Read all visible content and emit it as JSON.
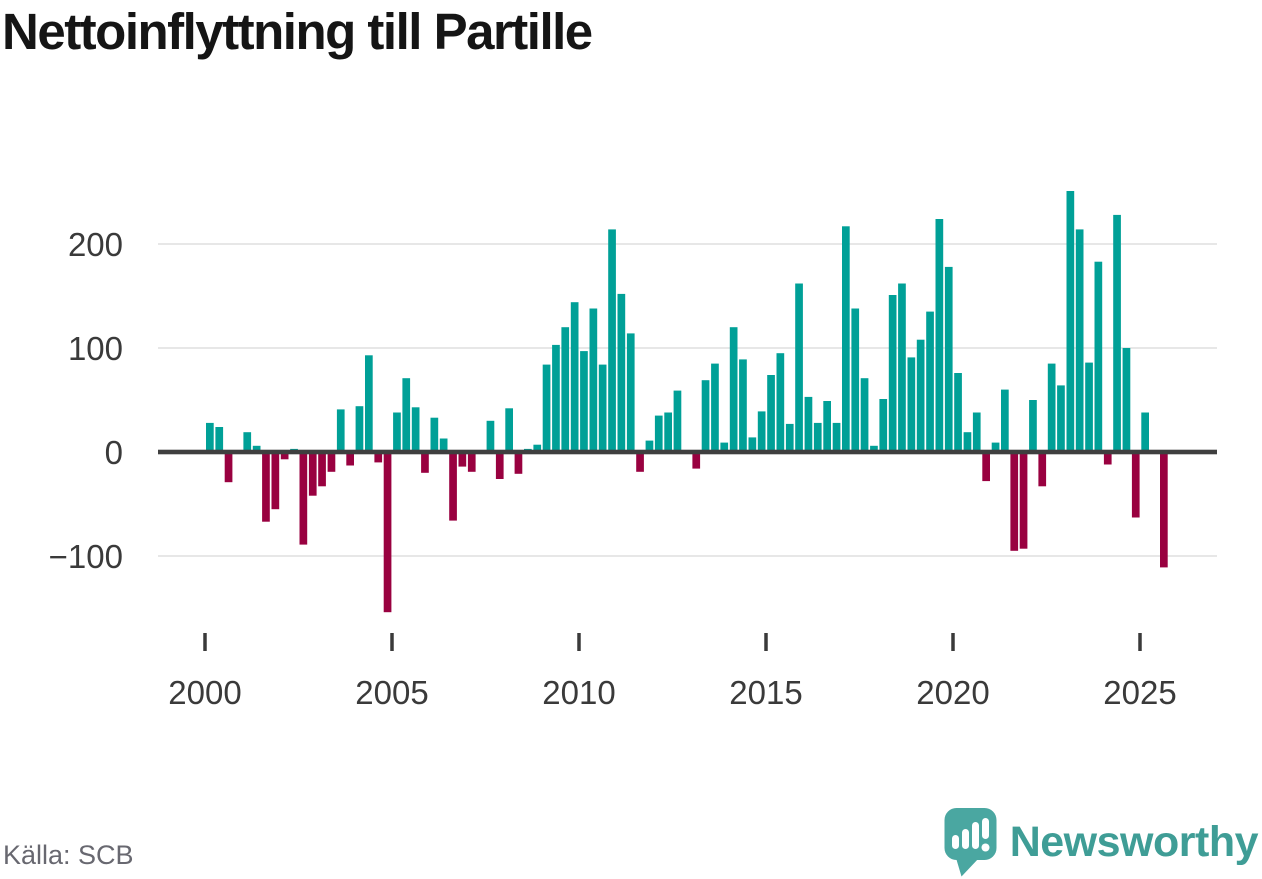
{
  "chart_data": {
    "type": "bar",
    "title": "Nettoinflyttning till Partille",
    "xlabel": "",
    "ylabel": "",
    "legend": "none",
    "grid": "horizontal",
    "ylim": [
      -160,
      260
    ],
    "y_ticks": [
      200,
      100,
      0,
      -100
    ],
    "x_tick_years": [
      2000,
      2005,
      2010,
      2015,
      2020,
      2025
    ],
    "categories": [
      "2000 Q1",
      "2000 Q2",
      "2000 Q3",
      "2000 Q4",
      "2001 Q1",
      "2001 Q2",
      "2001 Q3",
      "2001 Q4",
      "2002 Q1",
      "2002 Q2",
      "2002 Q3",
      "2002 Q4",
      "2003 Q1",
      "2003 Q2",
      "2003 Q3",
      "2003 Q4",
      "2004 Q1",
      "2004 Q2",
      "2004 Q3",
      "2004 Q4",
      "2005 Q1",
      "2005 Q2",
      "2005 Q3",
      "2005 Q4",
      "2006 Q1",
      "2006 Q2",
      "2006 Q3",
      "2006 Q4",
      "2007 Q1",
      "2007 Q2",
      "2007 Q3",
      "2007 Q4",
      "2008 Q1",
      "2008 Q2",
      "2008 Q3",
      "2008 Q4",
      "2009 Q1",
      "2009 Q2",
      "2009 Q3",
      "2009 Q4",
      "2010 Q1",
      "2010 Q2",
      "2010 Q3",
      "2010 Q4",
      "2011 Q1",
      "2011 Q2",
      "2011 Q3",
      "2011 Q4",
      "2012 Q1",
      "2012 Q2",
      "2012 Q3",
      "2012 Q4",
      "2013 Q1",
      "2013 Q2",
      "2013 Q3",
      "2013 Q4",
      "2014 Q1",
      "2014 Q2",
      "2014 Q3",
      "2014 Q4",
      "2015 Q1",
      "2015 Q2",
      "2015 Q3",
      "2015 Q4",
      "2016 Q1",
      "2016 Q2",
      "2016 Q3",
      "2016 Q4",
      "2017 Q1",
      "2017 Q2",
      "2017 Q3",
      "2017 Q4",
      "2018 Q1",
      "2018 Q2",
      "2018 Q3",
      "2018 Q4",
      "2019 Q1",
      "2019 Q2",
      "2019 Q3",
      "2019 Q4",
      "2020 Q1",
      "2020 Q2",
      "2020 Q3",
      "2020 Q4",
      "2021 Q1",
      "2021 Q2",
      "2021 Q3",
      "2021 Q4",
      "2022 Q1",
      "2022 Q2",
      "2022 Q3",
      "2022 Q4",
      "2023 Q1",
      "2023 Q2",
      "2023 Q3",
      "2023 Q4",
      "2024 Q1",
      "2024 Q2",
      "2024 Q3",
      "2024 Q4",
      "2025 Q1",
      "2025 Q2",
      "2025 Q3"
    ],
    "values": [
      28,
      24,
      -29,
      0,
      19,
      6,
      -67,
      -55,
      -7,
      3,
      -89,
      -42,
      -33,
      -19,
      41,
      -13,
      44,
      93,
      -10,
      -154,
      38,
      71,
      43,
      -20,
      33,
      13,
      -66,
      -14,
      -19,
      0,
      30,
      -26,
      42,
      -21,
      3,
      7,
      84,
      103,
      120,
      144,
      97,
      138,
      84,
      214,
      152,
      114,
      -19,
      11,
      35,
      38,
      59,
      0,
      -16,
      69,
      85,
      9,
      120,
      89,
      14,
      39,
      74,
      95,
      27,
      162,
      53,
      28,
      49,
      28,
      217,
      138,
      71,
      6,
      51,
      151,
      162,
      91,
      108,
      135,
      224,
      178,
      76,
      19,
      38,
      -28,
      9,
      60,
      -95,
      -93,
      50,
      -33,
      85,
      64,
      251,
      214,
      86,
      183,
      -12,
      228,
      100,
      -63,
      38,
      0,
      -111
    ],
    "colors": {
      "positive": "#00a097",
      "negative": "#990140",
      "zero_line": "#3f3f3f",
      "gridline": "#e7e7e7",
      "axis_text": "#3a3a3a"
    }
  },
  "footer": {
    "source": "Källa: SCB",
    "brand": "Newsworthy"
  },
  "brand_colors": {
    "logo": "#4aa7a1",
    "text": "#3f9d96"
  }
}
